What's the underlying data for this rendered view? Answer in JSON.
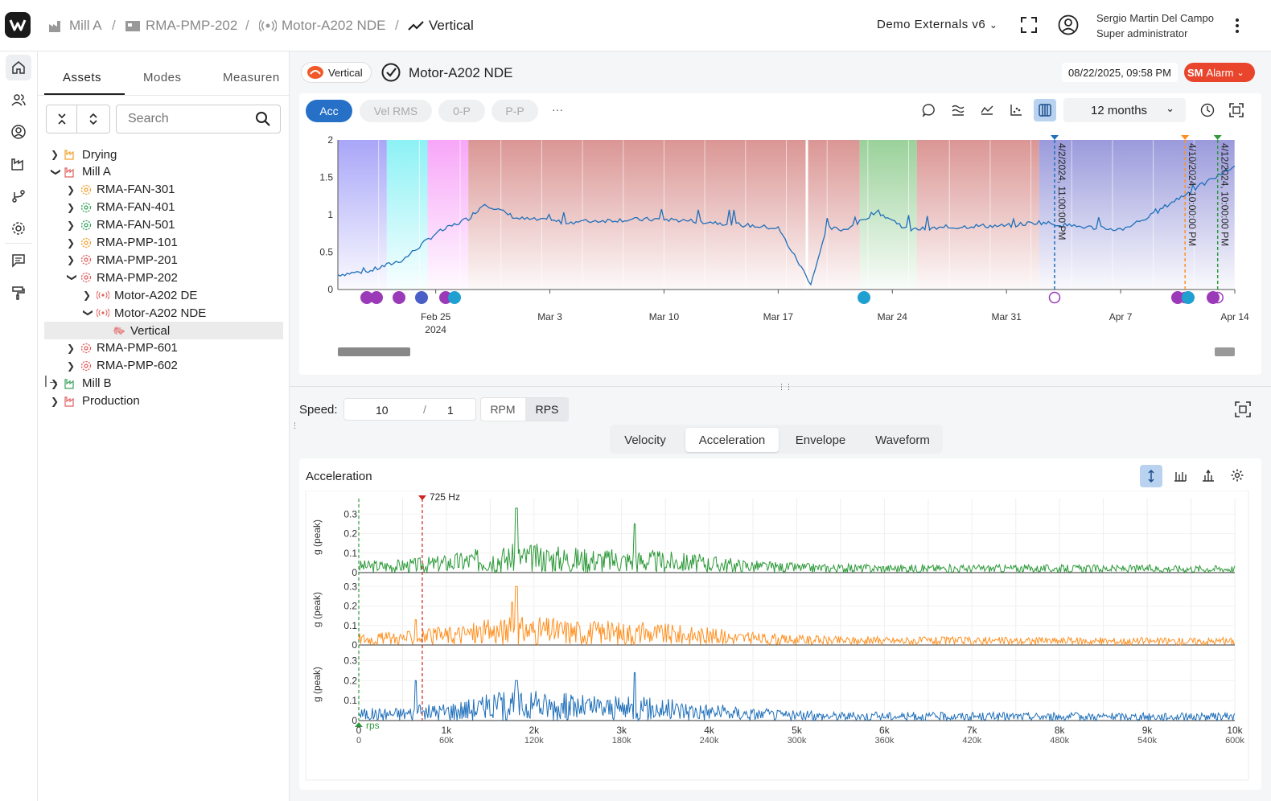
{
  "breadcrumb": {
    "items": [
      {
        "label": "Mill A",
        "icon": "factory-icon"
      },
      {
        "label": "RMA-PMP-202",
        "icon": "machine-icon"
      },
      {
        "label": "Motor-A202 NDE",
        "icon": "sensor-icon"
      },
      {
        "label": "Vertical",
        "icon": "trend-icon"
      }
    ],
    "separator": "/"
  },
  "header": {
    "project": "Demo Externals v6",
    "user_name": "Sergio Martin Del Campo",
    "user_role": "Super administrator"
  },
  "sidebar_tabs": [
    "Assets",
    "Modes",
    "Measuren"
  ],
  "search": {
    "placeholder": "Search",
    "value": ""
  },
  "tree": [
    {
      "label": "Drying",
      "level": 0,
      "chevron": ">",
      "color": "#f0a030",
      "icon": "factory-icon"
    },
    {
      "label": "Mill A",
      "level": 0,
      "chevron": "v",
      "color": "#e06060",
      "icon": "factory-icon"
    },
    {
      "label": "RMA-FAN-301",
      "level": 1,
      "chevron": ">",
      "color": "#f0a030",
      "icon": "gear-icon"
    },
    {
      "label": "RMA-FAN-401",
      "level": 1,
      "chevron": ">",
      "color": "#3aa060",
      "icon": "gear-icon"
    },
    {
      "label": "RMA-FAN-501",
      "level": 1,
      "chevron": ">",
      "color": "#3aa060",
      "icon": "gear-icon"
    },
    {
      "label": "RMA-PMP-101",
      "level": 1,
      "chevron": ">",
      "color": "#f0a030",
      "icon": "gear-icon"
    },
    {
      "label": "RMA-PMP-201",
      "level": 1,
      "chevron": ">",
      "color": "#e06060",
      "icon": "gear-icon"
    },
    {
      "label": "RMA-PMP-202",
      "level": 1,
      "chevron": "v",
      "color": "#e06060",
      "icon": "gear-icon"
    },
    {
      "label": "Motor-A202 DE",
      "level": 2,
      "chevron": ">",
      "color": "#e06060",
      "icon": "sensor-icon"
    },
    {
      "label": "Motor-A202 NDE",
      "level": 2,
      "chevron": "v",
      "color": "#e06060",
      "icon": "sensor-icon"
    },
    {
      "label": "Vertical",
      "level": 3,
      "chevron": "",
      "color": "#e06060",
      "icon": "waveform-icon",
      "selected": true
    },
    {
      "label": "RMA-PMP-601",
      "level": 1,
      "chevron": ">",
      "color": "#e06060",
      "icon": "gear-icon"
    },
    {
      "label": "RMA-PMP-602",
      "level": 1,
      "chevron": ">",
      "color": "#e06060",
      "icon": "gear-icon"
    },
    {
      "label": "Mill B",
      "level": 0,
      "chevron": ">",
      "color": "#3aa060",
      "icon": "factory-icon"
    },
    {
      "label": "Production",
      "level": 0,
      "chevron": ">",
      "color": "#e06060",
      "icon": "factory-icon"
    }
  ],
  "title_bar": {
    "badge": "Vertical",
    "title": "Motor-A202 NDE",
    "timestamp": "08/22/2025, 09:58 PM",
    "alarm_initials": "SM",
    "alarm_label": "Alarm"
  },
  "trend_controls": {
    "pills": [
      "Acc",
      "Vel RMS",
      "0-P",
      "P-P"
    ],
    "active": "Acc",
    "more": "···",
    "range": "12 months"
  },
  "spectrum": {
    "speed_label": "Speed:",
    "speed_value": "10",
    "speed_sep": "/",
    "speed_ratio": "1",
    "units": [
      "RPM",
      "RPS"
    ],
    "active_unit": "RPS",
    "tabs": [
      "Velocity",
      "Acceleration",
      "Envelope",
      "Waveform"
    ],
    "active_tab": "Acceleration",
    "panel_title": "Acceleration"
  },
  "colors": {
    "accent": "#2670c8",
    "alarm": "#e8452c",
    "series_green": "#2e9a3a",
    "series_orange": "#ff9020",
    "series_blue": "#1f6fba"
  },
  "chart_data": [
    {
      "type": "line",
      "title": "",
      "ylabel": "",
      "ylim": [
        0,
        2
      ],
      "yticks": [
        "0",
        "0.5",
        "1",
        "1.5",
        "2"
      ],
      "x": [
        "2024-02-19",
        "2024-02-21",
        "2024-02-23",
        "2024-02-25",
        "2024-02-26",
        "2024-02-27",
        "2024-02-28",
        "2024-03-01",
        "2024-03-04",
        "2024-03-07",
        "2024-03-10",
        "2024-03-13",
        "2024-03-15",
        "2024-03-17",
        "2024-03-19",
        "2024-03-20",
        "2024-03-21",
        "2024-03-22",
        "2024-03-23",
        "2024-03-25",
        "2024-03-27",
        "2024-03-29",
        "2024-03-31",
        "2024-04-02",
        "2024-04-04",
        "2024-04-07",
        "2024-04-09",
        "2024-04-10",
        "2024-04-12",
        "2024-04-14"
      ],
      "values": [
        0.2,
        0.25,
        0.4,
        0.75,
        0.85,
        0.95,
        1.15,
        0.95,
        0.9,
        0.93,
        0.94,
        0.9,
        0.86,
        0.82,
        0.08,
        0.82,
        0.8,
        0.9,
        1.05,
        0.8,
        0.82,
        0.85,
        0.85,
        0.9,
        0.85,
        0.8,
        1.0,
        1.15,
        1.4,
        1.65
      ],
      "xticks": [
        "Feb 25\n2024",
        "Mar 3",
        "Mar 10",
        "Mar 17",
        "Mar 24",
        "Mar 31",
        "Apr 7",
        "Apr 14"
      ],
      "markers": [
        {
          "date": "4/2/2024, 11:00:00 PM",
          "color": "#1f6fba"
        },
        {
          "date": "4/10/2024, 10:00:00 PM",
          "color": "#ff9020"
        },
        {
          "date": "4/12/2024, 10:00:00 PM",
          "color": "#2e9a3a"
        }
      ]
    },
    {
      "type": "line",
      "title": "Acceleration",
      "ylabel": "g (peak)",
      "yticks": [
        "0",
        "0.1",
        "0.2",
        "0.3"
      ],
      "xticks": [
        "0",
        "1k",
        "2k",
        "3k",
        "4k",
        "5k",
        "6k",
        "7k",
        "8k",
        "9k",
        "10k"
      ],
      "xticks_secondary": [
        "0",
        "60k",
        "120k",
        "180k",
        "240k",
        "300k",
        "360k",
        "420k",
        "480k",
        "540k",
        "600k"
      ],
      "xlim": [
        0,
        10000
      ],
      "ylim": [
        0,
        0.3
      ],
      "cursor_label": "725 Hz",
      "cursor_x": 725,
      "rps_label": "rps",
      "series": [
        {
          "color": "#2e9a3a",
          "peak": 0.33,
          "peak_x": 1800
        },
        {
          "color": "#ff9020",
          "peak": 0.3,
          "peak_x": 1800
        },
        {
          "color": "#1f6fba",
          "peak": 0.24,
          "peak_x": 3150
        }
      ]
    }
  ]
}
